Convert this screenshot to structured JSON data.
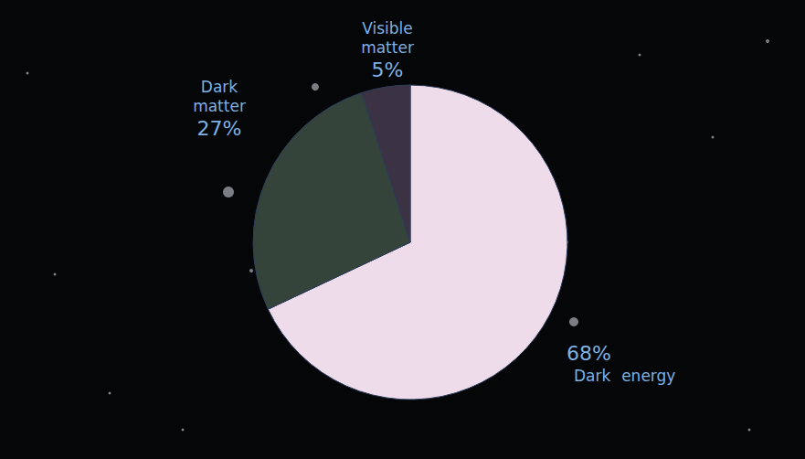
{
  "chart_data": {
    "type": "pie",
    "categories": [
      "Dark energy",
      "Dark matter",
      "Visible matter"
    ],
    "values": [
      68,
      27,
      5
    ],
    "value_labels": [
      "68%",
      "27%",
      "5%"
    ],
    "colors": [
      "#eedcea",
      "#34443a",
      "#3b3344"
    ],
    "data_labels": true
  }
}
